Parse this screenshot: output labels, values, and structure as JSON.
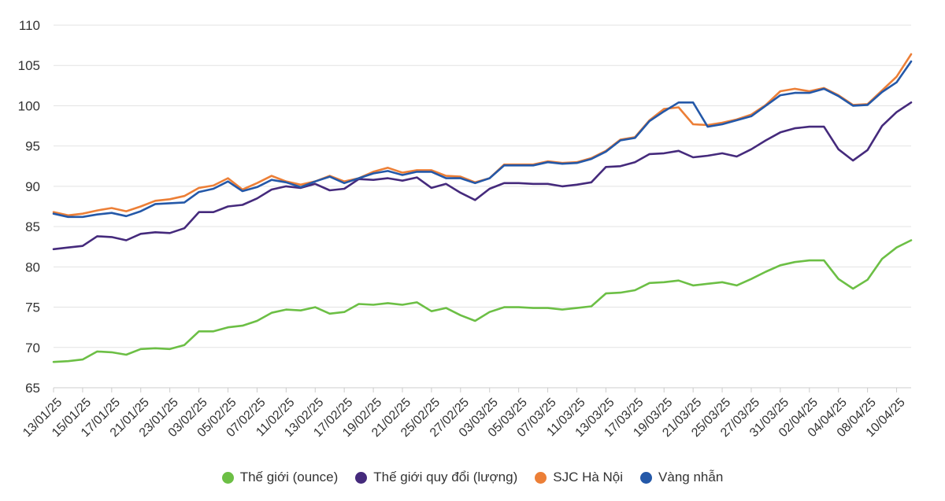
{
  "chart_data": {
    "type": "line",
    "title": "",
    "xlabel": "",
    "ylabel": "",
    "ylim": [
      65,
      110
    ],
    "yticks": [
      65,
      70,
      75,
      80,
      85,
      90,
      95,
      100,
      105,
      110
    ],
    "grid": true,
    "legend_position": "bottom",
    "x": [
      "13/01/25",
      "14/01/25",
      "15/01/25",
      "16/01/25",
      "17/01/25",
      "20/01/25",
      "21/01/25",
      "22/01/25",
      "23/01/25",
      "24/01/25",
      "03/02/25",
      "04/02/25",
      "05/02/25",
      "06/02/25",
      "07/02/25",
      "10/02/25",
      "11/02/25",
      "12/02/25",
      "13/02/25",
      "14/02/25",
      "17/02/25",
      "18/02/25",
      "19/02/25",
      "20/02/25",
      "21/02/25",
      "24/02/25",
      "25/02/25",
      "26/02/25",
      "27/02/25",
      "28/02/25",
      "03/03/25",
      "04/03/25",
      "05/03/25",
      "06/03/25",
      "07/03/25",
      "10/03/25",
      "11/03/25",
      "12/03/25",
      "13/03/25",
      "14/03/25",
      "17/03/25",
      "18/03/25",
      "19/03/25",
      "20/03/25",
      "21/03/25",
      "24/03/25",
      "25/03/25",
      "26/03/25",
      "27/03/25",
      "28/03/25",
      "31/03/25",
      "01/04/25",
      "02/04/25",
      "03/04/25",
      "04/04/25",
      "07/04/25",
      "08/04/25",
      "09/04/25",
      "10/04/25",
      "11/04/25"
    ],
    "x_tick_labels": [
      "13/01/25",
      "15/01/25",
      "17/01/25",
      "21/01/25",
      "23/01/25",
      "03/02/25",
      "05/02/25",
      "07/02/25",
      "11/02/25",
      "13/02/25",
      "17/02/25",
      "19/02/25",
      "21/02/25",
      "25/02/25",
      "27/02/25",
      "03/03/25",
      "05/03/25",
      "07/03/25",
      "11/03/25",
      "13/03/25",
      "17/03/25",
      "19/03/25",
      "21/03/25",
      "25/03/25",
      "27/03/25",
      "31/03/25",
      "02/04/25",
      "04/04/25",
      "08/04/25",
      "10/04/25"
    ],
    "series": [
      {
        "name": "Thế giới (ounce)",
        "color": "#6cbf45",
        "values": [
          68.2,
          68.3,
          68.5,
          69.5,
          69.4,
          69.1,
          69.8,
          69.9,
          69.8,
          70.3,
          72.0,
          72.0,
          72.5,
          72.7,
          73.3,
          74.3,
          74.7,
          74.6,
          75.0,
          74.2,
          74.4,
          75.4,
          75.3,
          75.5,
          75.3,
          75.6,
          74.5,
          74.9,
          74.0,
          73.3,
          74.4,
          75.0,
          75.0,
          74.9,
          74.9,
          74.7,
          74.9,
          75.1,
          76.7,
          76.8,
          77.1,
          78.0,
          78.1,
          78.3,
          77.7,
          77.9,
          78.1,
          77.7,
          78.5,
          79.4,
          80.2,
          80.6,
          80.8,
          80.8,
          78.5,
          77.3,
          78.4,
          81.0,
          82.4,
          83.3
        ]
      },
      {
        "name": "Thế giới quy đổi (lượng)",
        "color": "#452a7c",
        "values": [
          82.2,
          82.4,
          82.6,
          83.8,
          83.7,
          83.3,
          84.1,
          84.3,
          84.2,
          84.8,
          86.8,
          86.8,
          87.5,
          87.7,
          88.5,
          89.6,
          90.0,
          89.8,
          90.3,
          89.5,
          89.7,
          90.9,
          90.8,
          91.0,
          90.7,
          91.1,
          89.8,
          90.3,
          89.2,
          88.3,
          89.7,
          90.4,
          90.4,
          90.3,
          90.3,
          90.0,
          90.2,
          90.5,
          92.4,
          92.5,
          93.0,
          94.0,
          94.1,
          94.4,
          93.6,
          93.8,
          94.1,
          93.7,
          94.6,
          95.7,
          96.7,
          97.2,
          97.4,
          97.4,
          94.6,
          93.2,
          94.5,
          97.5,
          99.2,
          100.4
        ]
      },
      {
        "name": "SJC Hà Nội",
        "color": "#ec7f37",
        "values": [
          86.8,
          86.4,
          86.6,
          87.0,
          87.3,
          86.9,
          87.5,
          88.2,
          88.4,
          88.8,
          89.8,
          90.1,
          91.0,
          89.6,
          90.4,
          91.3,
          90.6,
          90.2,
          90.6,
          91.3,
          90.6,
          91.0,
          91.8,
          92.3,
          91.7,
          92.0,
          92.0,
          91.3,
          91.2,
          90.5,
          91.0,
          92.7,
          92.7,
          92.7,
          93.1,
          92.9,
          93.0,
          93.5,
          94.4,
          95.8,
          96.1,
          98.2,
          99.6,
          99.8,
          97.7,
          97.6,
          97.9,
          98.3,
          98.9,
          100.1,
          101.8,
          102.1,
          101.8,
          102.2,
          101.3,
          100.1,
          100.2,
          101.9,
          103.6,
          106.4
        ]
      },
      {
        "name": "Vàng nhẫn",
        "color": "#2458a8",
        "values": [
          86.6,
          86.2,
          86.2,
          86.5,
          86.7,
          86.3,
          86.9,
          87.8,
          87.9,
          88.0,
          89.3,
          89.7,
          90.6,
          89.4,
          89.9,
          90.8,
          90.5,
          89.9,
          90.6,
          91.2,
          90.4,
          91.0,
          91.6,
          91.9,
          91.4,
          91.8,
          91.8,
          91.0,
          91.0,
          90.4,
          91.0,
          92.6,
          92.6,
          92.6,
          93.0,
          92.8,
          92.9,
          93.4,
          94.3,
          95.7,
          96.0,
          98.1,
          99.3,
          100.4,
          100.4,
          97.4,
          97.7,
          98.2,
          98.7,
          100.0,
          101.3,
          101.6,
          101.6,
          102.1,
          101.2,
          100.0,
          100.1,
          101.7,
          102.9,
          105.5
        ]
      }
    ]
  }
}
